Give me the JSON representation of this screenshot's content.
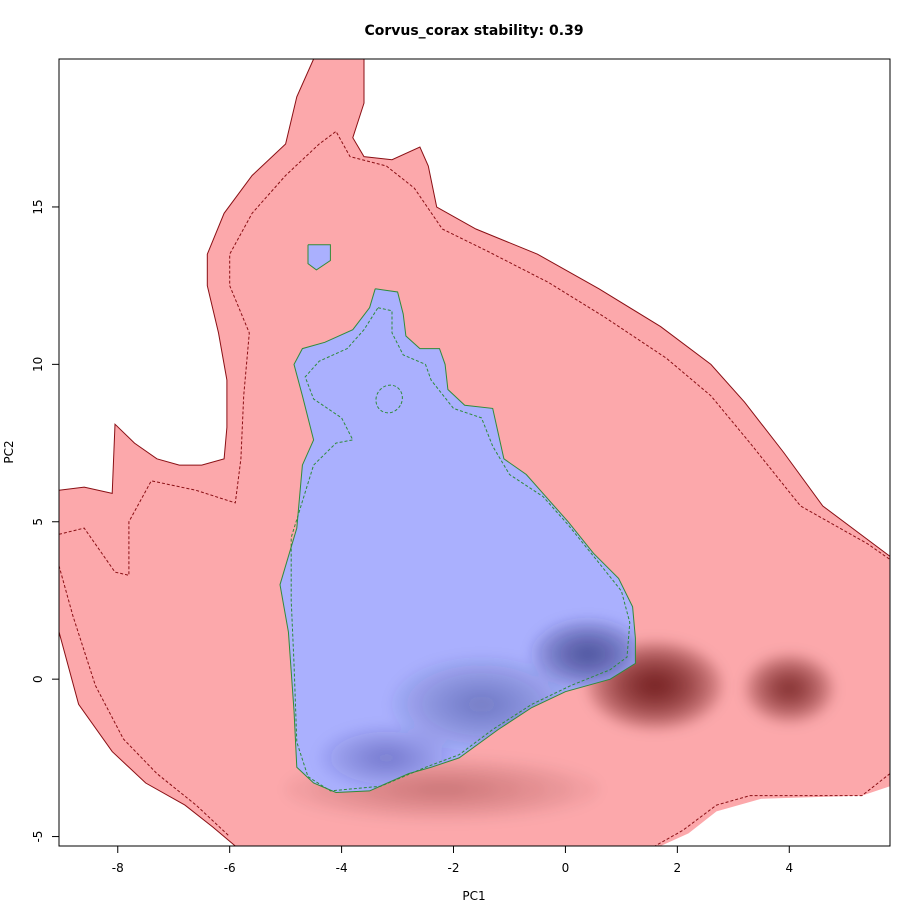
{
  "chart_data": {
    "type": "heatmap",
    "title": "Corvus_corax stability: 0.39",
    "xlabel": "PC1",
    "ylabel": "PC2",
    "xlim": [
      -9.05,
      5.8
    ],
    "ylim": [
      -5.3,
      19.7
    ],
    "x_ticks": [
      -8,
      -6,
      -4,
      -2,
      0,
      2,
      4
    ],
    "y_ticks": [
      -5,
      0,
      5,
      10,
      15
    ],
    "x_tick_labels": [
      "-8",
      "-6",
      "-4",
      "-2",
      "0",
      "2",
      "4"
    ],
    "y_tick_labels": [
      "-5",
      "0",
      "5",
      "10",
      "15"
    ],
    "grid": false,
    "colors": {
      "background_climate": "#fca8ab",
      "overlap_blue": "#aab0fe",
      "dark_blue": "#2b3079",
      "dark_red": "#560000",
      "red_contour": "#8a0f14",
      "green_contour": "#2e8b3a"
    },
    "regions": [
      {
        "name": "background",
        "points": [
          [
            -9.05,
            6.0
          ],
          [
            -8.6,
            6.1
          ],
          [
            -8.1,
            5.9
          ],
          [
            -8.05,
            8.1
          ],
          [
            -7.7,
            7.5
          ],
          [
            -7.3,
            7.0
          ],
          [
            -6.9,
            6.8
          ],
          [
            -6.5,
            6.8
          ],
          [
            -6.1,
            7.0
          ],
          [
            -6.05,
            8.0
          ],
          [
            -6.05,
            9.5
          ],
          [
            -6.2,
            11.0
          ],
          [
            -6.4,
            12.5
          ],
          [
            -6.4,
            13.5
          ],
          [
            -6.1,
            14.8
          ],
          [
            -5.6,
            16.0
          ],
          [
            -5.0,
            17.0
          ],
          [
            -4.8,
            18.5
          ],
          [
            -4.5,
            19.7
          ],
          [
            -3.6,
            19.7
          ],
          [
            -3.6,
            18.3
          ],
          [
            -3.8,
            17.2
          ],
          [
            -3.6,
            16.6
          ],
          [
            -3.1,
            16.5
          ],
          [
            -2.6,
            16.9
          ],
          [
            -2.45,
            16.3
          ],
          [
            -2.3,
            15.0
          ],
          [
            -1.6,
            14.3
          ],
          [
            -0.5,
            13.5
          ],
          [
            0.6,
            12.4
          ],
          [
            1.7,
            11.2
          ],
          [
            2.6,
            10.0
          ],
          [
            3.2,
            8.8
          ],
          [
            3.9,
            7.2
          ],
          [
            4.6,
            5.5
          ],
          [
            5.8,
            3.9
          ],
          [
            5.8,
            -3.4
          ],
          [
            5.3,
            -3.7
          ],
          [
            3.5,
            -3.8
          ],
          [
            2.7,
            -4.2
          ],
          [
            2.2,
            -4.9
          ],
          [
            1.7,
            -5.3
          ],
          [
            -5.9,
            -5.3
          ],
          [
            -6.3,
            -4.7
          ],
          [
            -6.8,
            -4.0
          ],
          [
            -7.5,
            -3.3
          ],
          [
            -8.1,
            -2.3
          ],
          [
            -8.7,
            -0.8
          ],
          [
            -9.05,
            1.5
          ]
        ]
      },
      {
        "name": "overlap-main",
        "points": [
          [
            -3.4,
            12.4
          ],
          [
            -3.0,
            12.3
          ],
          [
            -2.9,
            11.6
          ],
          [
            -2.85,
            10.9
          ],
          [
            -2.6,
            10.5
          ],
          [
            -2.25,
            10.5
          ],
          [
            -2.15,
            10.0
          ],
          [
            -2.1,
            9.2
          ],
          [
            -1.8,
            8.7
          ],
          [
            -1.3,
            8.6
          ],
          [
            -1.2,
            7.8
          ],
          [
            -1.1,
            7.0
          ],
          [
            -0.7,
            6.5
          ],
          [
            -0.35,
            5.8
          ],
          [
            0.05,
            5.0
          ],
          [
            0.5,
            4.0
          ],
          [
            0.95,
            3.2
          ],
          [
            1.2,
            2.3
          ],
          [
            1.25,
            1.3
          ],
          [
            1.25,
            0.5
          ],
          [
            0.8,
            0.0
          ],
          [
            0.0,
            -0.4
          ],
          [
            -0.6,
            -0.9
          ],
          [
            -1.2,
            -1.6
          ],
          [
            -1.9,
            -2.5
          ],
          [
            -2.4,
            -2.8
          ],
          [
            -2.8,
            -3.0
          ],
          [
            -3.5,
            -3.55
          ],
          [
            -4.1,
            -3.6
          ],
          [
            -4.5,
            -3.3
          ],
          [
            -4.8,
            -2.8
          ],
          [
            -4.85,
            -1.0
          ],
          [
            -4.95,
            1.5
          ],
          [
            -5.1,
            3.0
          ],
          [
            -4.8,
            4.8
          ],
          [
            -4.7,
            6.8
          ],
          [
            -4.5,
            7.6
          ],
          [
            -4.6,
            8.3
          ],
          [
            -4.7,
            9.0
          ],
          [
            -4.85,
            10.0
          ],
          [
            -4.7,
            10.5
          ],
          [
            -4.3,
            10.7
          ],
          [
            -3.8,
            11.1
          ],
          [
            -3.5,
            11.8
          ]
        ]
      },
      {
        "name": "overlap-small",
        "points": [
          [
            -4.6,
            13.8
          ],
          [
            -4.2,
            13.8
          ],
          [
            -4.2,
            13.3
          ],
          [
            -4.45,
            13.0
          ],
          [
            -4.6,
            13.2
          ]
        ]
      }
    ],
    "contours": [
      {
        "name": "background-outer",
        "color": "red",
        "style": "solid",
        "points": [
          [
            -9.05,
            6.0
          ],
          [
            -8.6,
            6.1
          ],
          [
            -8.1,
            5.9
          ],
          [
            -8.05,
            8.1
          ],
          [
            -7.7,
            7.5
          ],
          [
            -7.3,
            7.0
          ],
          [
            -6.9,
            6.8
          ],
          [
            -6.5,
            6.8
          ],
          [
            -6.1,
            7.0
          ],
          [
            -6.05,
            8.0
          ],
          [
            -6.05,
            9.5
          ],
          [
            -6.2,
            11.0
          ],
          [
            -6.4,
            12.5
          ],
          [
            -6.4,
            13.5
          ],
          [
            -6.1,
            14.8
          ],
          [
            -5.6,
            16.0
          ],
          [
            -5.0,
            17.0
          ],
          [
            -4.8,
            18.5
          ],
          [
            -4.5,
            19.7
          ],
          [
            -3.6,
            19.7
          ],
          [
            -3.6,
            18.3
          ],
          [
            -3.8,
            17.2
          ],
          [
            -3.6,
            16.6
          ],
          [
            -3.1,
            16.5
          ],
          [
            -2.6,
            16.9
          ],
          [
            -2.45,
            16.3
          ],
          [
            -2.3,
            15.0
          ],
          [
            -1.6,
            14.3
          ],
          [
            -0.5,
            13.5
          ],
          [
            0.6,
            12.4
          ],
          [
            1.7,
            11.2
          ],
          [
            2.6,
            10.0
          ],
          [
            3.2,
            8.8
          ],
          [
            3.9,
            7.2
          ],
          [
            4.6,
            5.5
          ],
          [
            5.8,
            3.9
          ]
        ]
      },
      {
        "name": "background-outer-bottom",
        "color": "red",
        "style": "solid",
        "points": [
          [
            -9.05,
            1.5
          ],
          [
            -8.7,
            -0.8
          ],
          [
            -8.1,
            -2.3
          ],
          [
            -7.5,
            -3.3
          ],
          [
            -6.8,
            -4.0
          ],
          [
            -6.3,
            -4.7
          ],
          [
            -5.9,
            -5.3
          ]
        ]
      },
      {
        "name": "background-inner",
        "color": "red",
        "style": "dashed",
        "points": [
          [
            -9.05,
            4.6
          ],
          [
            -8.6,
            4.8
          ],
          [
            -8.05,
            3.4
          ],
          [
            -7.8,
            3.3
          ],
          [
            -7.8,
            5.0
          ],
          [
            -7.4,
            6.3
          ],
          [
            -6.6,
            6.0
          ],
          [
            -5.9,
            5.6
          ],
          [
            -5.8,
            7.0
          ],
          [
            -5.75,
            9.0
          ],
          [
            -5.65,
            11.0
          ],
          [
            -6.0,
            12.5
          ],
          [
            -6.0,
            13.5
          ],
          [
            -5.6,
            14.8
          ],
          [
            -5.0,
            16.0
          ],
          [
            -4.4,
            17.0
          ],
          [
            -4.1,
            17.4
          ],
          [
            -3.85,
            16.6
          ],
          [
            -3.2,
            16.3
          ],
          [
            -2.7,
            15.6
          ],
          [
            -2.2,
            14.3
          ],
          [
            -1.4,
            13.6
          ],
          [
            -0.3,
            12.6
          ],
          [
            0.7,
            11.5
          ],
          [
            1.8,
            10.2
          ],
          [
            2.6,
            9.0
          ],
          [
            3.3,
            7.5
          ],
          [
            4.2,
            5.5
          ],
          [
            5.4,
            4.3
          ],
          [
            5.8,
            3.8
          ]
        ]
      },
      {
        "name": "background-inner-bottom",
        "color": "red",
        "style": "dashed",
        "points": [
          [
            -9.05,
            3.6
          ],
          [
            -8.8,
            2.0
          ],
          [
            -8.4,
            -0.2
          ],
          [
            -7.9,
            -1.9
          ],
          [
            -7.3,
            -3.0
          ],
          [
            -6.6,
            -4.0
          ],
          [
            -6.0,
            -5.0
          ]
        ]
      },
      {
        "name": "background-inner-right",
        "color": "red",
        "style": "dashed",
        "points": [
          [
            5.8,
            -3.0
          ],
          [
            5.3,
            -3.7
          ],
          [
            3.3,
            -3.7
          ],
          [
            2.7,
            -4.0
          ],
          [
            2.1,
            -4.8
          ],
          [
            1.6,
            -5.3
          ]
        ]
      },
      {
        "name": "overlap-outer",
        "color": "green",
        "style": "solid",
        "points": [
          [
            -3.4,
            12.4
          ],
          [
            -3.0,
            12.3
          ],
          [
            -2.9,
            11.6
          ],
          [
            -2.85,
            10.9
          ],
          [
            -2.6,
            10.5
          ],
          [
            -2.25,
            10.5
          ],
          [
            -2.15,
            10.0
          ],
          [
            -2.1,
            9.2
          ],
          [
            -1.8,
            8.7
          ],
          [
            -1.3,
            8.6
          ],
          [
            -1.2,
            7.8
          ],
          [
            -1.1,
            7.0
          ],
          [
            -0.7,
            6.5
          ],
          [
            -0.35,
            5.8
          ],
          [
            0.05,
            5.0
          ],
          [
            0.5,
            4.0
          ],
          [
            0.95,
            3.2
          ],
          [
            1.2,
            2.3
          ],
          [
            1.25,
            1.3
          ],
          [
            1.25,
            0.5
          ],
          [
            0.8,
            0.0
          ],
          [
            0.0,
            -0.4
          ],
          [
            -0.6,
            -0.9
          ],
          [
            -1.2,
            -1.6
          ],
          [
            -1.9,
            -2.5
          ],
          [
            -2.4,
            -2.8
          ],
          [
            -2.8,
            -3.0
          ],
          [
            -3.5,
            -3.55
          ],
          [
            -4.1,
            -3.6
          ],
          [
            -4.5,
            -3.3
          ],
          [
            -4.8,
            -2.8
          ],
          [
            -4.85,
            -1.0
          ],
          [
            -4.95,
            1.5
          ],
          [
            -5.1,
            3.0
          ],
          [
            -4.8,
            4.8
          ],
          [
            -4.7,
            6.8
          ],
          [
            -4.5,
            7.6
          ],
          [
            -4.6,
            8.3
          ],
          [
            -4.7,
            9.0
          ],
          [
            -4.85,
            10.0
          ],
          [
            -4.7,
            10.5
          ],
          [
            -4.3,
            10.7
          ],
          [
            -3.8,
            11.1
          ],
          [
            -3.5,
            11.8
          ],
          [
            -3.4,
            12.4
          ]
        ]
      },
      {
        "name": "overlap-inner",
        "color": "green",
        "style": "dashed",
        "points": [
          [
            -3.35,
            11.8
          ],
          [
            -3.1,
            11.7
          ],
          [
            -3.1,
            11.0
          ],
          [
            -2.9,
            10.3
          ],
          [
            -2.5,
            10.0
          ],
          [
            -2.4,
            9.5
          ],
          [
            -2.0,
            8.6
          ],
          [
            -1.5,
            8.3
          ],
          [
            -1.3,
            7.4
          ],
          [
            -1.0,
            6.5
          ],
          [
            -0.4,
            5.8
          ],
          [
            0.05,
            4.9
          ],
          [
            0.55,
            3.8
          ],
          [
            1.0,
            2.8
          ],
          [
            1.15,
            1.8
          ],
          [
            1.1,
            0.7
          ],
          [
            0.8,
            0.3
          ],
          [
            0.1,
            -0.2
          ],
          [
            -0.6,
            -0.8
          ],
          [
            -1.3,
            -1.6
          ],
          [
            -1.9,
            -2.4
          ],
          [
            -2.5,
            -2.8
          ],
          [
            -3.3,
            -3.4
          ],
          [
            -4.2,
            -3.55
          ],
          [
            -4.6,
            -3.1
          ],
          [
            -4.8,
            -2.0
          ],
          [
            -4.85,
            0.5
          ],
          [
            -4.9,
            2.5
          ],
          [
            -4.9,
            4.5
          ],
          [
            -4.5,
            6.8
          ],
          [
            -4.1,
            7.5
          ],
          [
            -3.8,
            7.6
          ],
          [
            -4.0,
            8.3
          ],
          [
            -4.5,
            8.9
          ],
          [
            -4.65,
            9.6
          ],
          [
            -4.4,
            10.1
          ],
          [
            -3.9,
            10.5
          ],
          [
            -3.6,
            11.1
          ],
          [
            -3.35,
            11.8
          ]
        ]
      },
      {
        "name": "overlap-small-outer",
        "color": "green",
        "style": "solid",
        "points": [
          [
            -4.6,
            13.8
          ],
          [
            -4.2,
            13.8
          ],
          [
            -4.2,
            13.3
          ],
          [
            -4.45,
            13.0
          ],
          [
            -4.6,
            13.2
          ],
          [
            -4.6,
            13.8
          ]
        ]
      }
    ],
    "ellipses": [
      {
        "name": "overlap-hole",
        "color": "green",
        "style": "dashed",
        "cx": -3.15,
        "cy": 8.9,
        "rx": 0.23,
        "ry": 0.45
      }
    ],
    "density_peaks": [
      {
        "name": "red-peak-main",
        "cx": 1.6,
        "cy": -0.2,
        "color": "dark_red",
        "strength": 1.0,
        "sx": 1.2,
        "sy": 1.4
      },
      {
        "name": "red-peak-secondary",
        "cx": 4.0,
        "cy": -0.3,
        "color": "dark_red",
        "strength": 0.8,
        "sx": 0.8,
        "sy": 1.1
      },
      {
        "name": "red-ridge-bottom",
        "cx": -2.2,
        "cy": -3.5,
        "color": "dark_red",
        "strength": 0.25,
        "sx": 2.8,
        "sy": 1.0
      },
      {
        "name": "blue-peak-main",
        "cx": 0.4,
        "cy": 0.8,
        "color": "dark_blue",
        "strength": 0.85,
        "sx": 1.0,
        "sy": 1.1
      },
      {
        "name": "blue-peak-secondary",
        "cx": -1.5,
        "cy": -0.8,
        "color": "dark_blue",
        "strength": 0.4,
        "sx": 1.6,
        "sy": 1.5
      },
      {
        "name": "blue-peak-faint",
        "cx": -3.2,
        "cy": -2.5,
        "color": "dark_blue",
        "strength": 0.35,
        "sx": 1.2,
        "sy": 1.0
      }
    ]
  }
}
